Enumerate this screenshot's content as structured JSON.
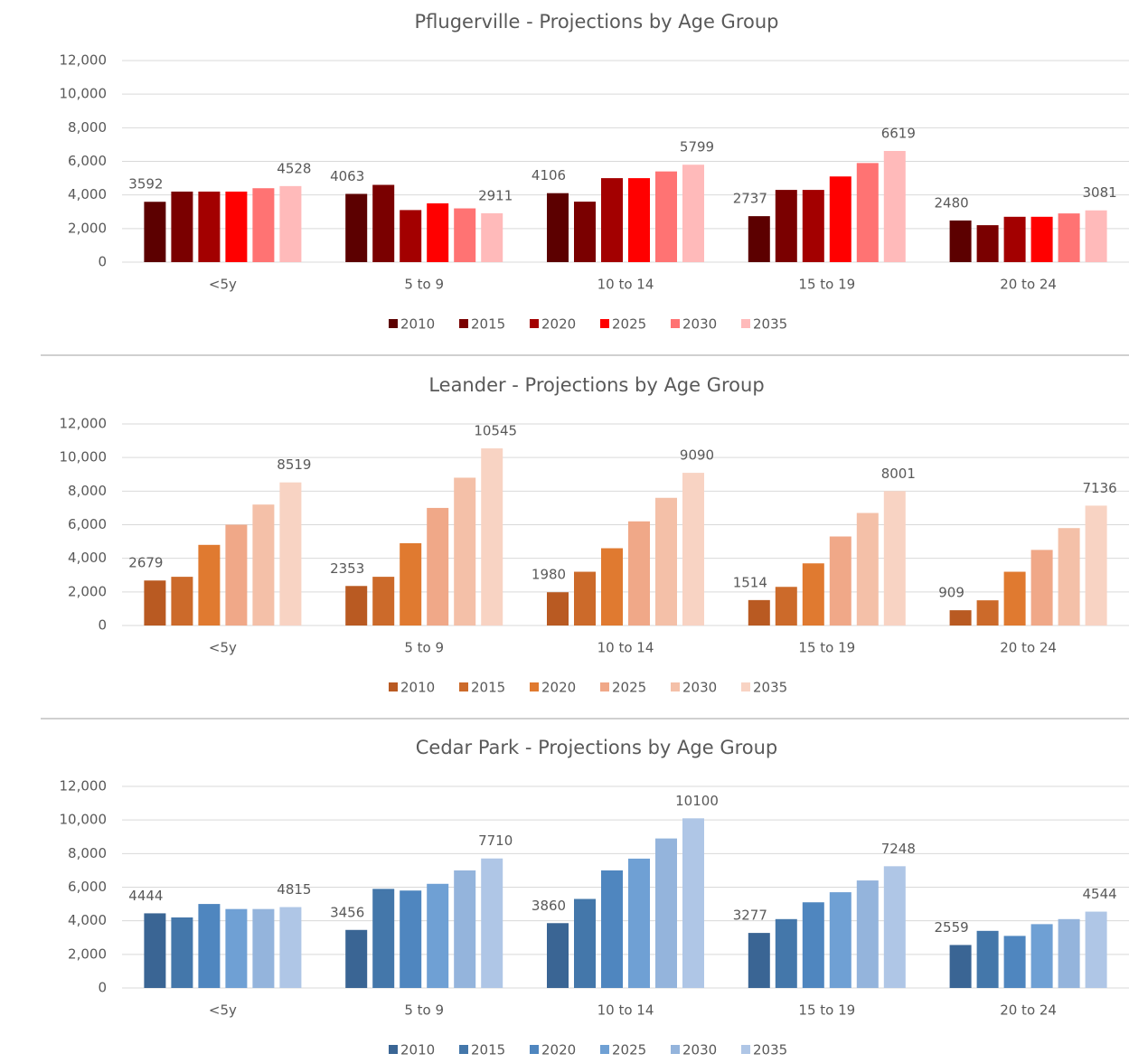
{
  "chart_data": [
    {
      "type": "bar",
      "title": "Pflugerville - Projections by Age Group",
      "categories": [
        "<5y",
        "5 to 9",
        "10 to 14",
        "15 to 19",
        "20 to 24"
      ],
      "series": [
        {
          "name": "2010",
          "color": "#5c0000",
          "data_labels": true,
          "values": [
            3592,
            4063,
            4106,
            2737,
            2480
          ]
        },
        {
          "name": "2015",
          "color": "#7a0000",
          "values": [
            4200,
            4600,
            3600,
            4300,
            2200
          ]
        },
        {
          "name": "2020",
          "color": "#a30000",
          "values": [
            4200,
            3100,
            5000,
            4300,
            2700
          ]
        },
        {
          "name": "2025",
          "color": "#ff0000",
          "values": [
            4200,
            3500,
            5000,
            5100,
            2700
          ]
        },
        {
          "name": "2030",
          "color": "#ff7373",
          "values": [
            4400,
            3200,
            5400,
            5900,
            2900
          ]
        },
        {
          "name": "2035",
          "color": "#ffbaba",
          "data_labels": true,
          "values": [
            4528,
            2911,
            5799,
            6619,
            3081
          ]
        }
      ],
      "ylim": [
        0,
        12000
      ],
      "yticks": [
        0,
        {
          "value": 2000,
          "label": "2,000"
        },
        {
          "value": 4000,
          "label": "4,000"
        },
        {
          "value": 6000,
          "label": "6,000"
        },
        {
          "value": 8000,
          "label": "8,000"
        },
        {
          "value": 10000,
          "label": "10,000"
        },
        {
          "value": 12000,
          "label": "12,000"
        }
      ],
      "grid": true,
      "legend": "bottom"
    },
    {
      "type": "bar",
      "title": "Leander - Projections by Age Group",
      "categories": [
        "<5y",
        "5 to 9",
        "10 to 14",
        "15 to 19",
        "20 to 24"
      ],
      "series": [
        {
          "name": "2010",
          "color": "#b95a22",
          "data_labels": true,
          "values": [
            2679,
            2353,
            1980,
            1514,
            909
          ]
        },
        {
          "name": "2015",
          "color": "#cc6a2a",
          "values": [
            2900,
            2900,
            3200,
            2300,
            1500
          ]
        },
        {
          "name": "2020",
          "color": "#e07a30",
          "values": [
            4800,
            4900,
            4600,
            3700,
            3200
          ]
        },
        {
          "name": "2025",
          "color": "#f0a888",
          "values": [
            6000,
            7000,
            6200,
            5300,
            4500
          ]
        },
        {
          "name": "2030",
          "color": "#f4c0a8",
          "values": [
            7200,
            8800,
            7600,
            6700,
            5800
          ]
        },
        {
          "name": "2035",
          "color": "#f8d3c3",
          "data_labels": true,
          "values": [
            8519,
            10545,
            9090,
            8001,
            7136
          ]
        }
      ],
      "ylim": [
        0,
        12000
      ],
      "yticks": [
        0,
        {
          "value": 2000,
          "label": "2,000"
        },
        {
          "value": 4000,
          "label": "4,000"
        },
        {
          "value": 6000,
          "label": "6,000"
        },
        {
          "value": 8000,
          "label": "8,000"
        },
        {
          "value": 10000,
          "label": "10,000"
        },
        {
          "value": 12000,
          "label": "12,000"
        }
      ],
      "grid": true,
      "legend": "bottom"
    },
    {
      "type": "bar",
      "title": "Cedar Park - Projections by Age Group",
      "categories": [
        "<5y",
        "5 to 9",
        "10 to 14",
        "15 to 19",
        "20 to 24"
      ],
      "series": [
        {
          "name": "2010",
          "color": "#3a6594",
          "data_labels": true,
          "values": [
            4444,
            3456,
            3860,
            3277,
            2559
          ]
        },
        {
          "name": "2015",
          "color": "#4477aa",
          "values": [
            4200,
            5900,
            5300,
            4100,
            3400
          ]
        },
        {
          "name": "2020",
          "color": "#4f86bf",
          "values": [
            5000,
            5800,
            7000,
            5100,
            3100
          ]
        },
        {
          "name": "2025",
          "color": "#6fa0d4",
          "values": [
            4700,
            6200,
            7700,
            5700,
            3800
          ]
        },
        {
          "name": "2030",
          "color": "#94b4dc",
          "values": [
            4700,
            7000,
            8900,
            6400,
            4100
          ]
        },
        {
          "name": "2035",
          "color": "#afc6e6",
          "data_labels": true,
          "values": [
            4815,
            7710,
            10100,
            7248,
            4544
          ]
        }
      ],
      "ylim": [
        0,
        12000
      ],
      "yticks": [
        0,
        {
          "value": 2000,
          "label": "2,000"
        },
        {
          "value": 4000,
          "label": "4,000"
        },
        {
          "value": 6000,
          "label": "6,000"
        },
        {
          "value": 8000,
          "label": "8,000"
        },
        {
          "value": 10000,
          "label": "10,000"
        },
        {
          "value": 12000,
          "label": "12,000"
        }
      ],
      "grid": true,
      "legend": "bottom"
    }
  ]
}
